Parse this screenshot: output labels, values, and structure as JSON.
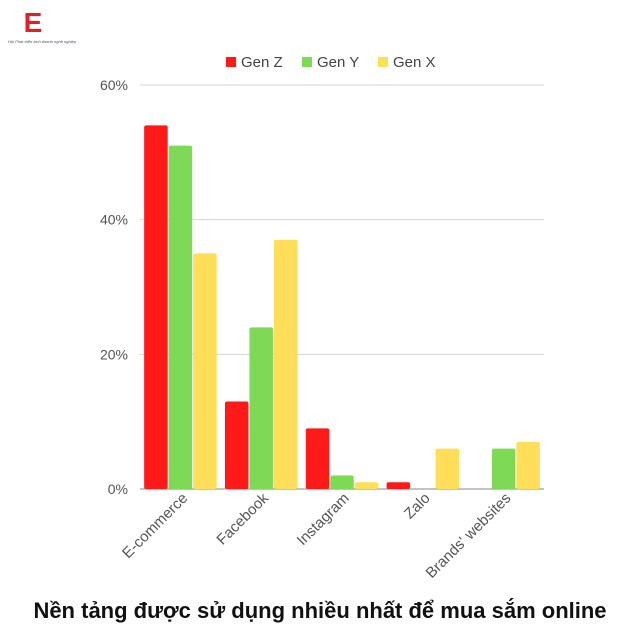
{
  "logo": {
    "letter": "E",
    "tagline": "Hội Phát triển kinh doanh nghề nghiệp",
    "color": "#d9222a"
  },
  "caption": "Nền tảng được sử dụng nhiều nhất để mua sắm online",
  "chart_data": {
    "type": "bar",
    "title": "",
    "xlabel": "",
    "ylabel": "",
    "categories": [
      "E-commerce",
      "Facebook",
      "Instagram",
      "Zalo",
      "Brands' websites"
    ],
    "series": [
      {
        "name": "Gen Z",
        "color": "#ff1a1a",
        "values": [
          54,
          13,
          9,
          1,
          0
        ]
      },
      {
        "name": "Gen Y",
        "color": "#7ed957",
        "values": [
          51,
          24,
          2,
          0,
          6
        ]
      },
      {
        "name": "Gen X",
        "color": "#ffde59",
        "values": [
          35,
          37,
          1,
          6,
          7
        ]
      }
    ],
    "ylim": [
      0,
      60
    ],
    "yticks": [
      0,
      20,
      40,
      60
    ],
    "ytick_labels": [
      "0%",
      "20%",
      "40%",
      "60%"
    ],
    "grid": true,
    "legend_position": "top"
  }
}
